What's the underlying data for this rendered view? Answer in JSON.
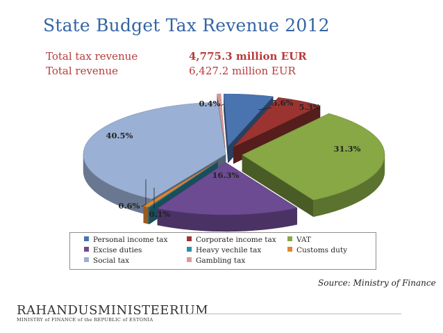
{
  "title": "State Budget Tax Revenue 2012",
  "totals": [
    {
      "label": "Total tax revenue",
      "value": "4,775.3 million EUR",
      "bold": true
    },
    {
      "label": "Total revenue",
      "value": "6,427.2 million EUR",
      "bold": false
    }
  ],
  "chart_data": {
    "type": "pie",
    "title": "",
    "legend_position": "bottom",
    "slices": [
      {
        "name": "Personal income tax",
        "value": 5.6,
        "label": "5.6%",
        "color": "#4a74b0",
        "exploded": true
      },
      {
        "name": "Corporate income tax",
        "value": 5.3,
        "label": "5.3%",
        "color": "#9b3431",
        "exploded": true
      },
      {
        "name": "VAT",
        "value": 31.3,
        "label": "31.3%",
        "color": "#87a845",
        "exploded": true
      },
      {
        "name": "Excise duties",
        "value": 16.3,
        "label": "16.3%",
        "color": "#6d4b93",
        "exploded": true
      },
      {
        "name": "Heavy vechile tax",
        "value": 0.1,
        "label": "0.1%",
        "color": "#2e8ea8",
        "exploded": true
      },
      {
        "name": "Customs duty",
        "value": 0.6,
        "label": "0.6%",
        "color": "#e0872f",
        "exploded": true
      },
      {
        "name": "Social tax",
        "value": 40.5,
        "label": "40.5%",
        "color": "#9ab0d4",
        "exploded": false
      },
      {
        "name": "Gambling tax",
        "value": 0.4,
        "label": "0.4%",
        "color": "#d99a98",
        "exploded": true
      }
    ]
  },
  "source": "Source: Ministry of Finance",
  "logo": {
    "main": "RAHANDUSMINISTEERIUM",
    "sub": "MINISTRY of FINANCE of the REPUBLIC of ESTONIA"
  }
}
